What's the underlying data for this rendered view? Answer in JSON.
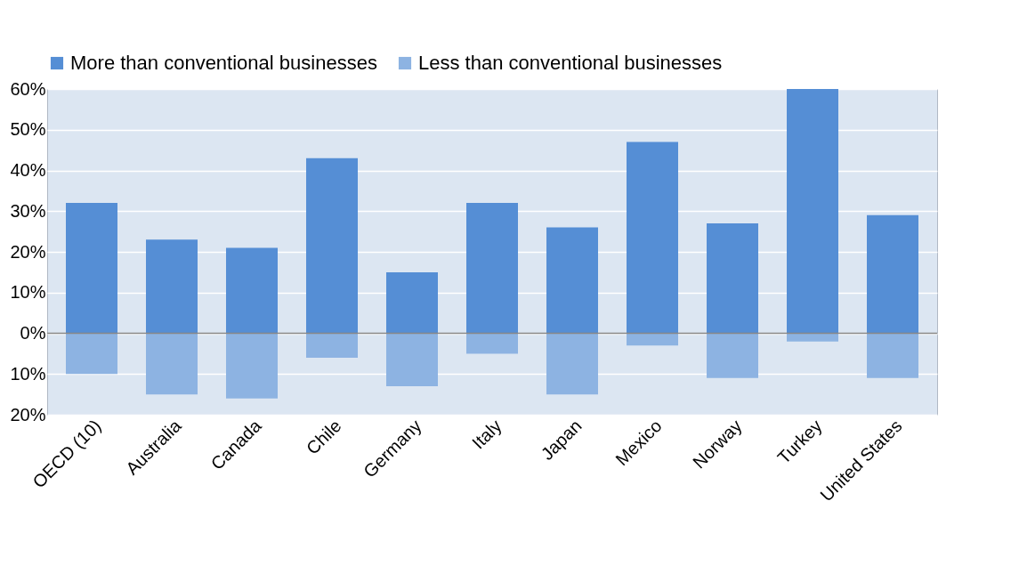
{
  "chart_data": {
    "type": "bar",
    "stacked": true,
    "categories": [
      "OECD (10)",
      "Australia",
      "Canada",
      "Chile",
      "Germany",
      "Italy",
      "Japan",
      "Mexico",
      "Norway",
      "Turkey",
      "United States"
    ],
    "series": [
      {
        "name": "More than conventional businesses",
        "color": "#558ed5",
        "values": [
          32,
          23,
          21,
          43,
          15,
          32,
          26,
          47,
          27,
          60,
          29
        ]
      },
      {
        "name": "Less than conventional businesses",
        "color": "#8db3e2",
        "values": [
          -10,
          -15,
          -16,
          -6,
          -13,
          -5,
          -15,
          -3,
          -11,
          -2,
          -11
        ]
      }
    ],
    "ylim": [
      -20,
      60
    ],
    "yticks": [
      {
        "value": -20,
        "label": "20%"
      },
      {
        "value": -10,
        "label": "10%"
      },
      {
        "value": 0,
        "label": "0%"
      },
      {
        "value": 10,
        "label": "10%"
      },
      {
        "value": 20,
        "label": "20%"
      },
      {
        "value": 30,
        "label": "30%"
      },
      {
        "value": 40,
        "label": "40%"
      },
      {
        "value": 50,
        "label": "50%"
      },
      {
        "value": 60,
        "label": "60%"
      }
    ],
    "grid": "y",
    "legend": "top"
  }
}
